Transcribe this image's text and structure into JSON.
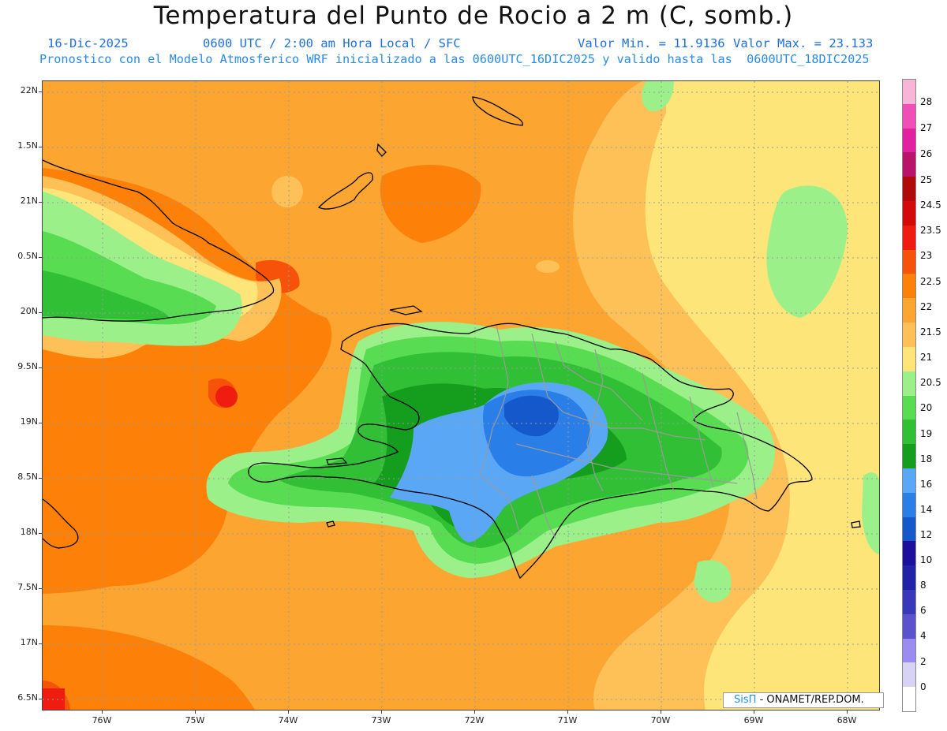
{
  "header": {
    "title": "Temperatura del Punto de Rocio a 2 m (C, somb.)",
    "date": "16-Dic-2025",
    "time": "0600 UTC / 2:00 am Hora Local / SFC",
    "min_label": "Valor Min. = 11.9136",
    "max_label": "Valor Max. = 23.133",
    "description": "Pronostico con el Modelo Atmosferico WRF inicializado a las 0600UTC_16DIC2025 y valido hasta las  0600UTC_18DIC2025"
  },
  "axes": {
    "y_labels": [
      "22N",
      "1.5N",
      "21N",
      "0.5N",
      "20N",
      "9.5N",
      "19N",
      "8.5N",
      "18N",
      "7.5N",
      "17N",
      "6.5N"
    ],
    "x_labels": [
      "76W",
      "75W",
      "74W",
      "73W",
      "72W",
      "71W",
      "70W",
      "69W",
      "68W"
    ]
  },
  "colorbar": {
    "labels": [
      "28",
      "27",
      "26",
      "25",
      "24.5",
      "23.5",
      "23",
      "22.5",
      "22",
      "21.5",
      "21",
      "20.5",
      "20",
      "19",
      "18",
      "16",
      "14",
      "12",
      "10",
      "8",
      "6",
      "4",
      "2",
      "0"
    ],
    "colors": [
      "#f7b5d8",
      "#ef4fb6",
      "#e3209f",
      "#b8146a",
      "#b00a0a",
      "#d40a0a",
      "#ee1d0f",
      "#f7520a",
      "#fd8108",
      "#fda531",
      "#fdc157",
      "#fde57a",
      "#9cf08a",
      "#58dc52",
      "#30bf35",
      "#159e1e",
      "#5aa8f5",
      "#2a7ee8",
      "#1558cc",
      "#1c0f9c",
      "#2222a8",
      "#3a37b8",
      "#5c52cc",
      "#9a8cf0",
      "#d6d3f5",
      "#ffffff"
    ]
  },
  "legend_credit": {
    "logo": "SisΠ",
    "org": "- ONAMET/REP.DOM."
  }
}
